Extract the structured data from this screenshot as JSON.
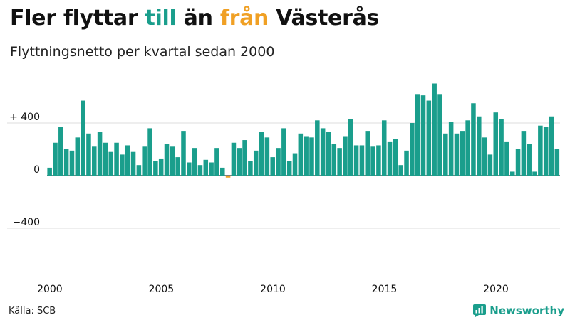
{
  "header": {
    "title_part1": "Fler flyttar ",
    "title_word_in": "till",
    "title_part2": " än ",
    "title_word_out": "från",
    "title_part3": " Västerås",
    "subtitle": "Flyttningsnetto per kvartal sedan 2000"
  },
  "footer": {
    "source": "Källa: SCB",
    "brand": "Newsworthy"
  },
  "colors": {
    "positive": "#1a9e8c",
    "negative": "#f0a024",
    "grid": "#dddddd",
    "zero_line": "#333333",
    "brand": "#1a9e8c"
  },
  "chart_data": {
    "type": "bar",
    "title": "Fler flyttar till än från Västerås",
    "subtitle": "Flyttningsnetto per kvartal sedan 2000",
    "xlabel": "",
    "ylabel": "",
    "ylim": [
      -700,
      760
    ],
    "grid": true,
    "y_ticks": [
      {
        "value": 400,
        "label": "+ 400"
      },
      {
        "value": 0,
        "label": "0"
      },
      {
        "value": -400,
        "label": "−400"
      }
    ],
    "x_ticks": [
      {
        "year": 2000,
        "label": "2000"
      },
      {
        "year": 2005,
        "label": "2005"
      },
      {
        "year": 2010,
        "label": "2010"
      },
      {
        "year": 2015,
        "label": "2015"
      },
      {
        "year": 2020,
        "label": "2020"
      }
    ],
    "start_year": 2000,
    "start_quarter": 1,
    "values": [
      60,
      250,
      370,
      200,
      190,
      290,
      570,
      320,
      220,
      330,
      250,
      180,
      250,
      160,
      230,
      180,
      80,
      220,
      360,
      110,
      130,
      240,
      220,
      140,
      340,
      100,
      210,
      80,
      120,
      100,
      210,
      60,
      -15,
      250,
      210,
      270,
      110,
      190,
      330,
      290,
      140,
      210,
      360,
      110,
      170,
      320,
      300,
      290,
      420,
      360,
      330,
      240,
      210,
      300,
      430,
      230,
      230,
      340,
      220,
      230,
      420,
      260,
      280,
      80,
      190,
      400,
      620,
      610,
      570,
      700,
      620,
      320,
      410,
      320,
      340,
      420,
      550,
      450,
      290,
      160,
      480,
      430,
      260,
      30,
      200,
      340,
      240,
      30,
      380,
      370,
      450,
      200
    ]
  }
}
